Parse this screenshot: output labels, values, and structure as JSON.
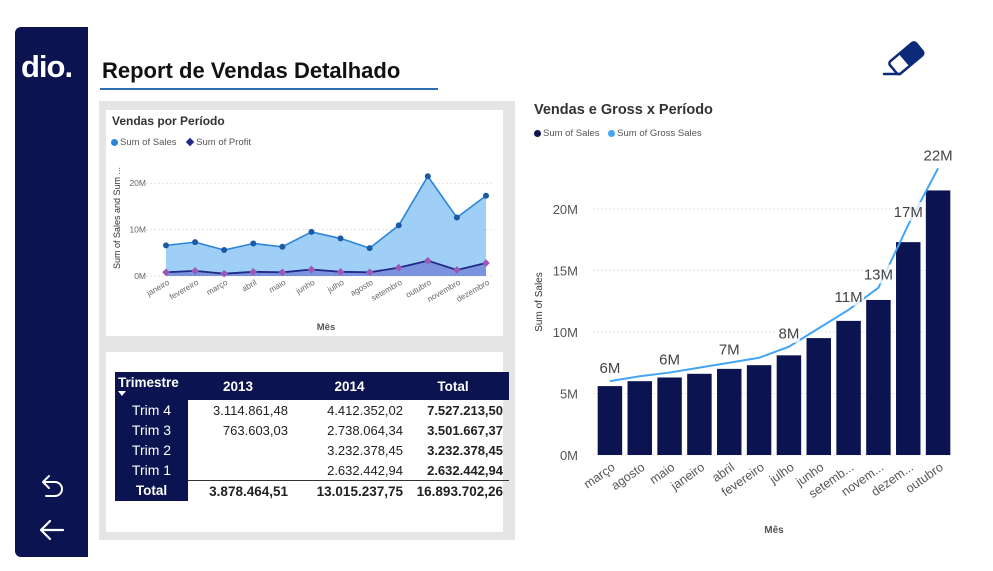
{
  "header": {
    "title": "Report de Vendas Detalhado",
    "logo_text": "dio."
  },
  "icons": {
    "logo": "dio-logo",
    "eraser": "eraser-icon",
    "undo": "undo-icon",
    "back": "back-arrow-icon"
  },
  "colors": {
    "navy": "#0b1450",
    "sales_area": "#8ec5f5",
    "sales_line": "#2a86d9",
    "profit": "#1f2a8a",
    "profit_marker": "#9b59b6",
    "gross_line": "#42a5f5",
    "accent_line": "#2e6db4"
  },
  "chart_data": [
    {
      "type": "area",
      "title": "Vendas por Período",
      "xlabel": "Mês",
      "ylabel": "Sum of Sales and Sum ...",
      "legend_position": "top-left",
      "categories": [
        "janeiro",
        "fevereiro",
        "março",
        "abril",
        "maio",
        "junho",
        "julho",
        "agosto",
        "setembro",
        "outubro",
        "novembro",
        "dezembro"
      ],
      "y_ticks": [
        "0M",
        "10M",
        "20M"
      ],
      "ylim": [
        0,
        25
      ],
      "grid": true,
      "series": [
        {
          "name": "Sum of  Sales",
          "values": [
            6.6,
            7.3,
            5.6,
            7.0,
            6.3,
            9.5,
            8.1,
            6.0,
            10.9,
            21.5,
            12.6,
            17.3
          ]
        },
        {
          "name": "Sum of Profit",
          "values": [
            0.8,
            1.1,
            0.5,
            0.9,
            0.8,
            1.4,
            0.9,
            0.8,
            1.8,
            3.3,
            1.3,
            2.8
          ]
        }
      ]
    },
    {
      "type": "bar",
      "title": "Vendas e Gross x Período",
      "xlabel": "Mês",
      "ylabel": "Sum of Sales",
      "legend_position": "top-left",
      "categories": [
        "março",
        "agosto",
        "maio",
        "janeiro",
        "abril",
        "fevereiro",
        "julho",
        "junho",
        "setemb...",
        "novem...",
        "dezem...",
        "outubro"
      ],
      "y_ticks": [
        "0M",
        "5M",
        "10M",
        "15M",
        "20M"
      ],
      "ylim": [
        0,
        23
      ],
      "grid": true,
      "series": [
        {
          "name": "Sum of  Sales",
          "values": [
            5.6,
            6.0,
            6.3,
            6.6,
            7.0,
            7.3,
            8.1,
            9.5,
            10.9,
            12.6,
            17.3,
            21.5
          ]
        },
        {
          "name": "Sum of Gross Sales",
          "values": [
            6.0,
            6.4,
            6.7,
            7.1,
            7.5,
            7.9,
            8.8,
            10.3,
            11.8,
            13.6,
            18.7,
            23.3
          ]
        }
      ],
      "data_labels": [
        {
          "index": 0,
          "text": "6M"
        },
        {
          "index": 2,
          "text": "6M"
        },
        {
          "index": 4,
          "text": "7M"
        },
        {
          "index": 6,
          "text": "8M"
        },
        {
          "index": 8,
          "text": "11M"
        },
        {
          "index": 9,
          "text": "13M"
        },
        {
          "index": 10,
          "text": "17M"
        },
        {
          "index": 11,
          "text": "22M"
        }
      ]
    }
  ],
  "matrix": {
    "headers": [
      "Trimestre",
      "2013",
      "2014",
      "Total"
    ],
    "rows": [
      {
        "label": "Trim 4",
        "v2013": "3.114.861,48",
        "v2014": "4.412.352,02",
        "total": "7.527.213,50"
      },
      {
        "label": "Trim 3",
        "v2013": "763.603,03",
        "v2014": "2.738.064,34",
        "total": "3.501.667,37"
      },
      {
        "label": "Trim 2",
        "v2013": "",
        "v2014": "3.232.378,45",
        "total": "3.232.378,45"
      },
      {
        "label": "Trim 1",
        "v2013": "",
        "v2014": "2.632.442,94",
        "total": "2.632.442,94"
      }
    ],
    "total_row": {
      "label": "Total",
      "v2013": "3.878.464,51",
      "v2014": "13.015.237,75",
      "total": "16.893.702,26"
    }
  }
}
